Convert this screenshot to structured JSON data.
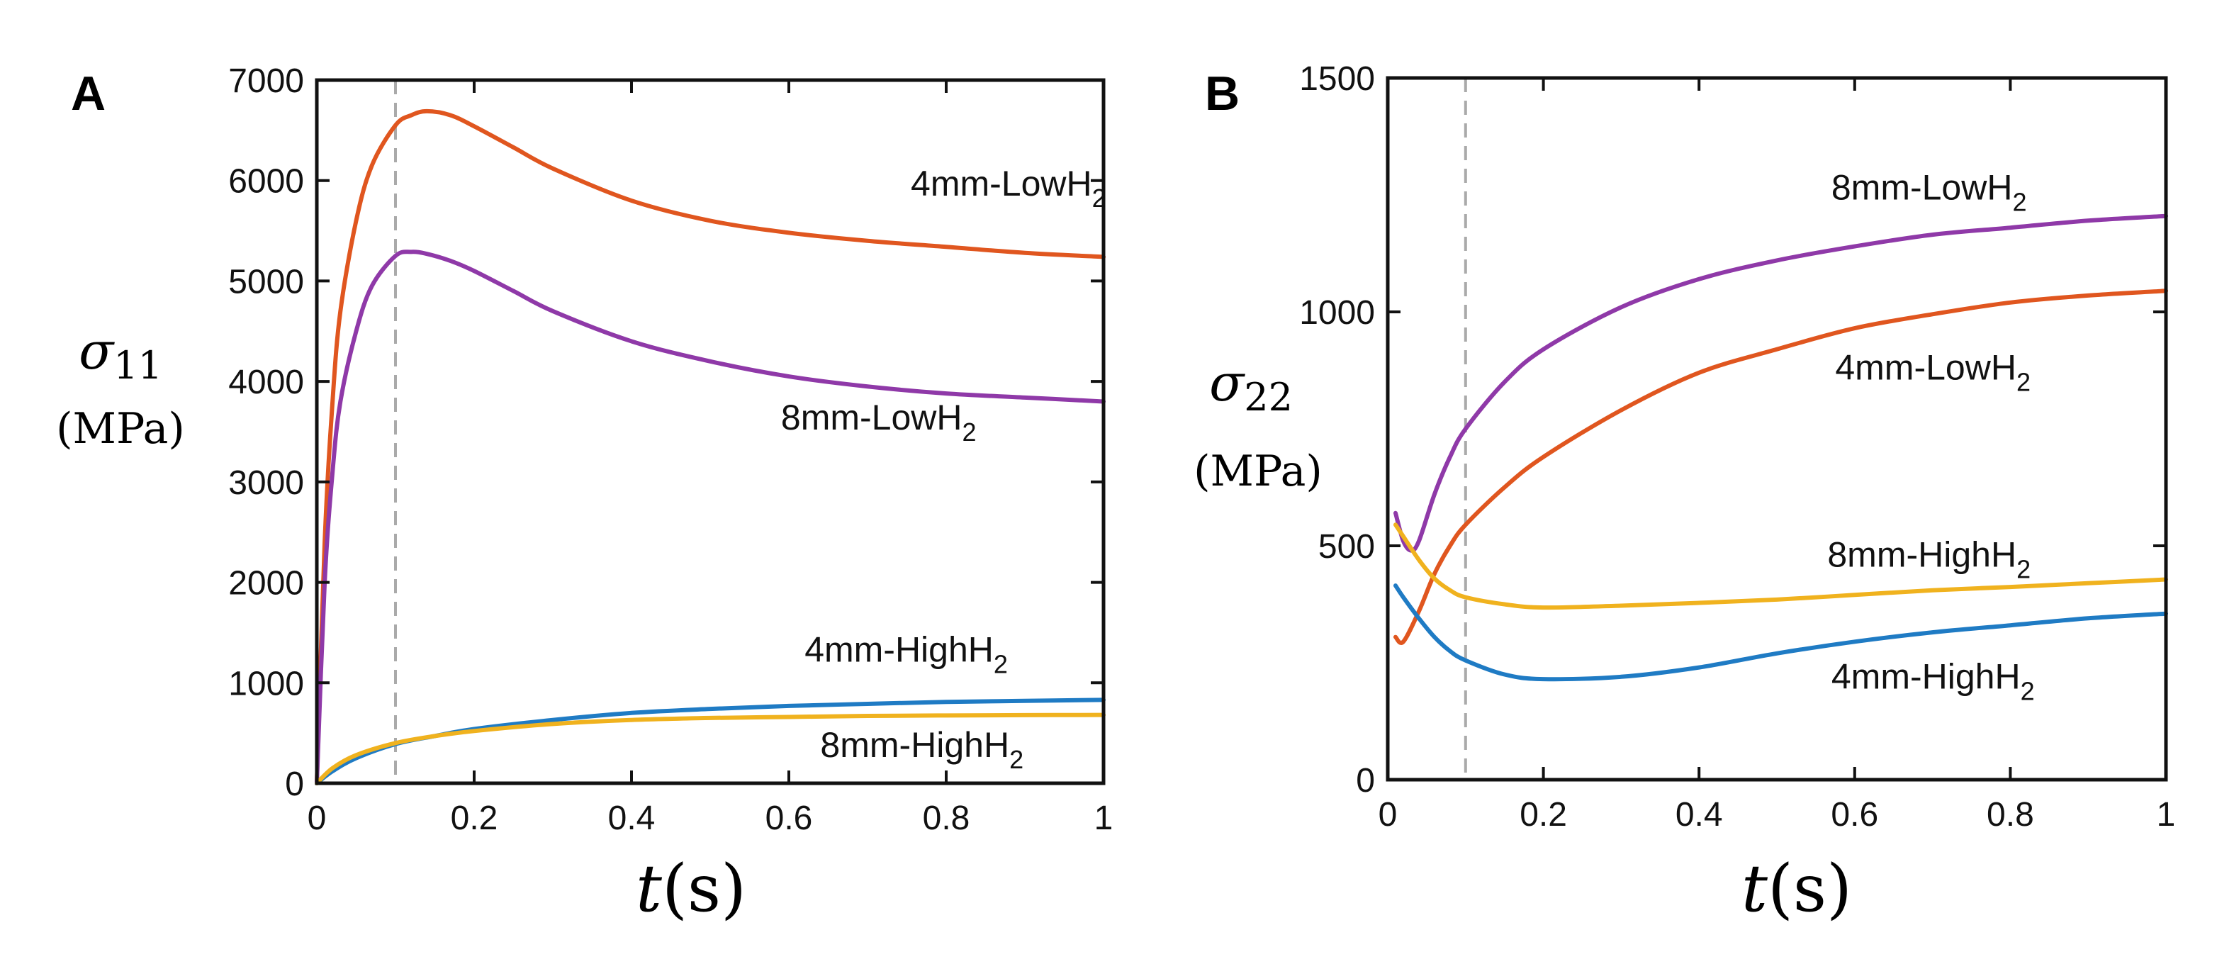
{
  "chart_data": [
    {
      "panel": "A",
      "type": "line",
      "x_var": "t",
      "x_unit": "(s)",
      "y_var": "σ",
      "y_sub": "11",
      "y_unit": "(MPa)",
      "xlim": [
        0,
        1
      ],
      "ylim": [
        0,
        7000
      ],
      "xticks": [
        0,
        0.2,
        0.4,
        0.6,
        0.8,
        1
      ],
      "xtick_labels": [
        "0",
        "0.2",
        "0.4",
        "0.6",
        "0.8",
        "1"
      ],
      "yticks": [
        0,
        1000,
        2000,
        3000,
        4000,
        5000,
        6000,
        7000
      ],
      "ytick_labels": [
        "0",
        "1000",
        "2000",
        "3000",
        "4000",
        "5000",
        "6000",
        "7000"
      ],
      "reference_line_x": 0.1,
      "series": [
        {
          "name": "4mm-LowH",
          "sub": "2",
          "color": "#e0561f",
          "x": [
            0,
            0.01,
            0.02,
            0.03,
            0.05,
            0.07,
            0.1,
            0.12,
            0.14,
            0.17,
            0.2,
            0.25,
            0.3,
            0.4,
            0.5,
            0.6,
            0.7,
            0.8,
            0.9,
            1.0
          ],
          "y": [
            0,
            2400,
            3800,
            4700,
            5600,
            6150,
            6550,
            6650,
            6690,
            6650,
            6540,
            6330,
            6120,
            5800,
            5600,
            5480,
            5400,
            5340,
            5280,
            5240
          ],
          "label_x": 0.755,
          "label_y": 5850
        },
        {
          "name": "8mm-LowH",
          "sub": "2",
          "color": "#8f39a8",
          "x": [
            0,
            0.01,
            0.02,
            0.03,
            0.05,
            0.07,
            0.1,
            0.12,
            0.14,
            0.17,
            0.2,
            0.25,
            0.3,
            0.4,
            0.5,
            0.6,
            0.7,
            0.8,
            0.9,
            1.0
          ],
          "y": [
            0,
            2000,
            3100,
            3800,
            4500,
            4950,
            5250,
            5290,
            5270,
            5200,
            5100,
            4900,
            4700,
            4400,
            4200,
            4050,
            3950,
            3880,
            3840,
            3800
          ],
          "label_x": 0.59,
          "label_y": 3520
        },
        {
          "name": "4mm-HighH",
          "sub": "2",
          "color": "#1f7bc4",
          "x": [
            0,
            0.02,
            0.05,
            0.1,
            0.15,
            0.2,
            0.3,
            0.4,
            0.5,
            0.6,
            0.7,
            0.8,
            0.9,
            1.0
          ],
          "y": [
            0,
            120,
            250,
            390,
            470,
            540,
            630,
            700,
            740,
            770,
            790,
            810,
            820,
            830
          ],
          "label_x": 0.62,
          "label_y": 1210
        },
        {
          "name": "8mm-HighH",
          "sub": "2",
          "color": "#f0b21e",
          "x": [
            0,
            0.02,
            0.05,
            0.1,
            0.15,
            0.2,
            0.3,
            0.4,
            0.5,
            0.6,
            0.7,
            0.8,
            0.9,
            1.0
          ],
          "y": [
            0,
            150,
            280,
            400,
            470,
            520,
            590,
            630,
            650,
            660,
            670,
            675,
            678,
            680
          ],
          "label_x": 0.64,
          "label_y": 260
        }
      ]
    },
    {
      "panel": "B",
      "type": "line",
      "x_var": "t",
      "x_unit": "(s)",
      "y_var": "σ",
      "y_sub": "22",
      "y_unit": "(MPa)",
      "xlim": [
        0,
        1
      ],
      "ylim": [
        0,
        1500
      ],
      "xticks": [
        0,
        0.2,
        0.4,
        0.6,
        0.8,
        1
      ],
      "xtick_labels": [
        "0",
        "0.2",
        "0.4",
        "0.6",
        "0.8",
        "1"
      ],
      "yticks": [
        0,
        500,
        1000,
        1500
      ],
      "ytick_labels": [
        "0",
        "500",
        "1000",
        "1500"
      ],
      "reference_line_x": 0.1,
      "series": [
        {
          "name": "8mm-LowH",
          "sub": "2",
          "color": "#8f39a8",
          "x": [
            0.01,
            0.02,
            0.03,
            0.04,
            0.06,
            0.08,
            0.1,
            0.15,
            0.2,
            0.3,
            0.4,
            0.5,
            0.6,
            0.7,
            0.8,
            0.9,
            1.0
          ],
          "y": [
            570,
            510,
            490,
            510,
            610,
            690,
            750,
            850,
            920,
            1010,
            1070,
            1110,
            1140,
            1165,
            1180,
            1195,
            1205
          ],
          "label_x": 0.57,
          "label_y": 1240
        },
        {
          "name": "4mm-LowH",
          "sub": "2",
          "color": "#e0561f",
          "x": [
            0.01,
            0.02,
            0.04,
            0.06,
            0.08,
            0.1,
            0.15,
            0.2,
            0.3,
            0.4,
            0.5,
            0.6,
            0.7,
            0.8,
            0.9,
            1.0
          ],
          "y": [
            305,
            295,
            360,
            440,
            500,
            545,
            625,
            690,
            790,
            870,
            920,
            965,
            995,
            1020,
            1035,
            1045
          ],
          "label_x": 0.575,
          "label_y": 855
        },
        {
          "name": "8mm-HighH",
          "sub": "2",
          "color": "#f0b21e",
          "x": [
            0.01,
            0.02,
            0.04,
            0.06,
            0.08,
            0.1,
            0.15,
            0.2,
            0.3,
            0.4,
            0.5,
            0.6,
            0.7,
            0.8,
            0.9,
            1.0
          ],
          "y": [
            545,
            520,
            470,
            430,
            405,
            390,
            375,
            368,
            372,
            378,
            385,
            395,
            405,
            412,
            420,
            428
          ],
          "label_x": 0.565,
          "label_y": 455
        },
        {
          "name": "4mm-HighH",
          "sub": "2",
          "color": "#1f7bc4",
          "x": [
            0.01,
            0.02,
            0.04,
            0.06,
            0.08,
            0.1,
            0.15,
            0.2,
            0.3,
            0.4,
            0.5,
            0.6,
            0.7,
            0.8,
            0.9,
            1.0
          ],
          "y": [
            415,
            390,
            345,
            305,
            275,
            255,
            225,
            215,
            220,
            240,
            270,
            295,
            315,
            330,
            345,
            355
          ],
          "label_x": 0.57,
          "label_y": 195
        }
      ]
    }
  ]
}
